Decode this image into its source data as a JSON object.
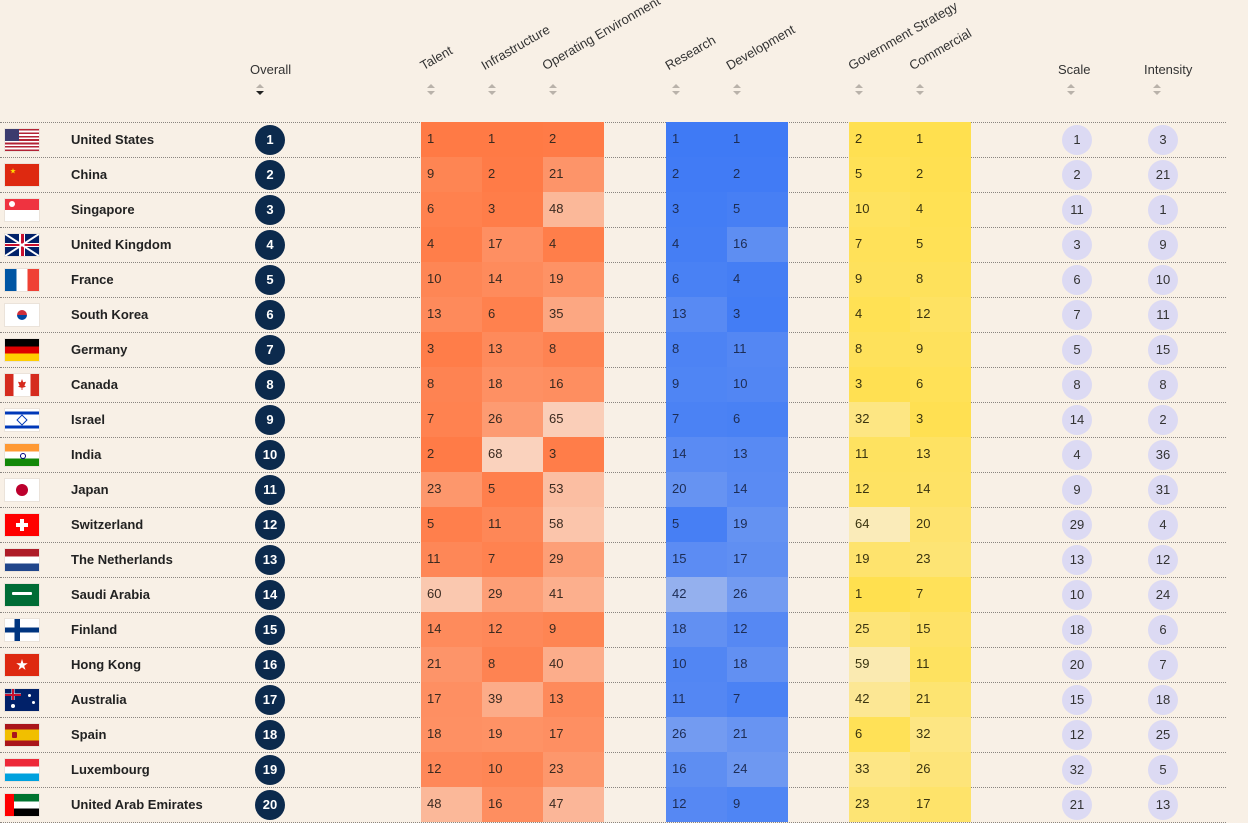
{
  "chart_data": {
    "type": "table",
    "columns": {
      "overall": "Overall",
      "talent": "Talent",
      "infrastructure": "Infrastructure",
      "operating_environment": "Operating Environment",
      "research": "Research",
      "development": "Development",
      "government_strategy": "Government Strategy",
      "commercial": "Commercial",
      "scale": "Scale",
      "intensity": "Intensity"
    },
    "sorted_by": "overall",
    "colors": {
      "talent_group": "#ff7a45",
      "research_group": "#3f7af5",
      "policy_group": "#ffe04f",
      "rank_badge": "#0c2a4d",
      "circle": "#dcdaf3",
      "background": "#f8f0e6"
    },
    "rows": [
      {
        "country": "United States",
        "flag": "us",
        "overall": "1",
        "talent": "1",
        "infrastructure": "1",
        "operating_environment": "2",
        "research": "1",
        "development": "1",
        "government_strategy": "2",
        "commercial": "1",
        "scale": "1",
        "intensity": "3"
      },
      {
        "country": "China",
        "flag": "cn",
        "overall": "2",
        "talent": "9",
        "infrastructure": "2",
        "operating_environment": "21",
        "research": "2",
        "development": "2",
        "government_strategy": "5",
        "commercial": "2",
        "scale": "2",
        "intensity": "21"
      },
      {
        "country": "Singapore",
        "flag": "sg",
        "overall": "3",
        "talent": "6",
        "infrastructure": "3",
        "operating_environment": "48",
        "research": "3",
        "development": "5",
        "government_strategy": "10",
        "commercial": "4",
        "scale": "11",
        "intensity": "1"
      },
      {
        "country": "United Kingdom",
        "flag": "gb",
        "overall": "4",
        "talent": "4",
        "infrastructure": "17",
        "operating_environment": "4",
        "research": "4",
        "development": "16",
        "government_strategy": "7",
        "commercial": "5",
        "scale": "3",
        "intensity": "9"
      },
      {
        "country": "France",
        "flag": "fr",
        "overall": "5",
        "talent": "10",
        "infrastructure": "14",
        "operating_environment": "19",
        "research": "6",
        "development": "4",
        "government_strategy": "9",
        "commercial": "8",
        "scale": "6",
        "intensity": "10"
      },
      {
        "country": "South Korea",
        "flag": "kr",
        "overall": "6",
        "talent": "13",
        "infrastructure": "6",
        "operating_environment": "35",
        "research": "13",
        "development": "3",
        "government_strategy": "4",
        "commercial": "12",
        "scale": "7",
        "intensity": "11"
      },
      {
        "country": "Germany",
        "flag": "de",
        "overall": "7",
        "talent": "3",
        "infrastructure": "13",
        "operating_environment": "8",
        "research": "8",
        "development": "11",
        "government_strategy": "8",
        "commercial": "9",
        "scale": "5",
        "intensity": "15"
      },
      {
        "country": "Canada",
        "flag": "ca",
        "overall": "8",
        "talent": "8",
        "infrastructure": "18",
        "operating_environment": "16",
        "research": "9",
        "development": "10",
        "government_strategy": "3",
        "commercial": "6",
        "scale": "8",
        "intensity": "8"
      },
      {
        "country": "Israel",
        "flag": "il",
        "overall": "9",
        "talent": "7",
        "infrastructure": "26",
        "operating_environment": "65",
        "research": "7",
        "development": "6",
        "government_strategy": "32",
        "commercial": "3",
        "scale": "14",
        "intensity": "2"
      },
      {
        "country": "India",
        "flag": "in",
        "overall": "10",
        "talent": "2",
        "infrastructure": "68",
        "operating_environment": "3",
        "research": "14",
        "development": "13",
        "government_strategy": "11",
        "commercial": "13",
        "scale": "4",
        "intensity": "36"
      },
      {
        "country": "Japan",
        "flag": "jp",
        "overall": "11",
        "talent": "23",
        "infrastructure": "5",
        "operating_environment": "53",
        "research": "20",
        "development": "14",
        "government_strategy": "12",
        "commercial": "14",
        "scale": "9",
        "intensity": "31"
      },
      {
        "country": "Switzerland",
        "flag": "ch",
        "overall": "12",
        "talent": "5",
        "infrastructure": "11",
        "operating_environment": "58",
        "research": "5",
        "development": "19",
        "government_strategy": "64",
        "commercial": "20",
        "scale": "29",
        "intensity": "4"
      },
      {
        "country": "The Netherlands",
        "flag": "nl",
        "overall": "13",
        "talent": "11",
        "infrastructure": "7",
        "operating_environment": "29",
        "research": "15",
        "development": "17",
        "government_strategy": "19",
        "commercial": "23",
        "scale": "13",
        "intensity": "12"
      },
      {
        "country": "Saudi Arabia",
        "flag": "sa",
        "overall": "14",
        "talent": "60",
        "infrastructure": "29",
        "operating_environment": "41",
        "research": "42",
        "development": "26",
        "government_strategy": "1",
        "commercial": "7",
        "scale": "10",
        "intensity": "24"
      },
      {
        "country": "Finland",
        "flag": "fi",
        "overall": "15",
        "talent": "14",
        "infrastructure": "12",
        "operating_environment": "9",
        "research": "18",
        "development": "12",
        "government_strategy": "25",
        "commercial": "15",
        "scale": "18",
        "intensity": "6"
      },
      {
        "country": "Hong Kong",
        "flag": "hk",
        "overall": "16",
        "talent": "21",
        "infrastructure": "8",
        "operating_environment": "40",
        "research": "10",
        "development": "18",
        "government_strategy": "59",
        "commercial": "11",
        "scale": "20",
        "intensity": "7"
      },
      {
        "country": "Australia",
        "flag": "au",
        "overall": "17",
        "talent": "17",
        "infrastructure": "39",
        "operating_environment": "13",
        "research": "11",
        "development": "7",
        "government_strategy": "42",
        "commercial": "21",
        "scale": "15",
        "intensity": "18"
      },
      {
        "country": "Spain",
        "flag": "es",
        "overall": "18",
        "talent": "18",
        "infrastructure": "19",
        "operating_environment": "17",
        "research": "26",
        "development": "21",
        "government_strategy": "6",
        "commercial": "32",
        "scale": "12",
        "intensity": "25"
      },
      {
        "country": "Luxembourg",
        "flag": "lu",
        "overall": "19",
        "talent": "12",
        "infrastructure": "10",
        "operating_environment": "23",
        "research": "16",
        "development": "24",
        "government_strategy": "33",
        "commercial": "26",
        "scale": "32",
        "intensity": "5"
      },
      {
        "country": "United Arab Emirates",
        "flag": "ae",
        "overall": "20",
        "talent": "48",
        "infrastructure": "16",
        "operating_environment": "47",
        "research": "12",
        "development": "9",
        "government_strategy": "23",
        "commercial": "17",
        "scale": "21",
        "intensity": "13"
      }
    ]
  }
}
